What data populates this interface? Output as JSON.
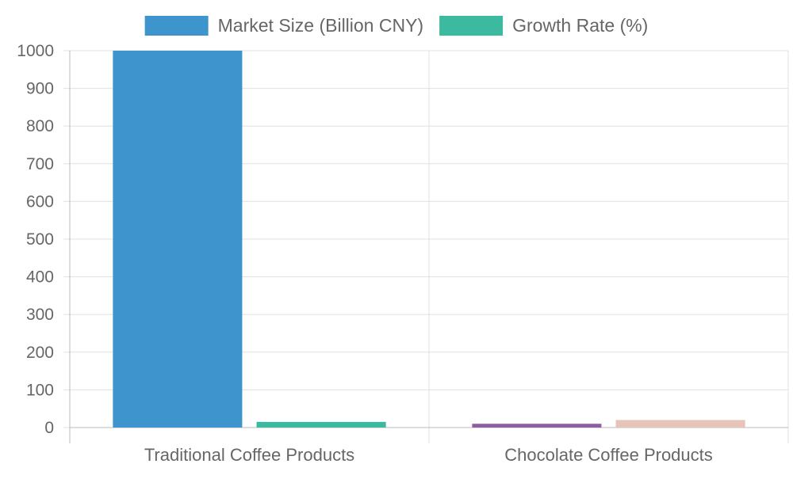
{
  "chart_data": {
    "type": "bar",
    "categories": [
      "Traditional Coffee Products",
      "Chocolate Coffee Products"
    ],
    "series": [
      {
        "name": "Market Size (Billion CNY)",
        "values": [
          1000,
          10
        ],
        "colors": [
          "#3e95cd",
          "#8e5ea2"
        ]
      },
      {
        "name": "Growth Rate (%)",
        "values": [
          15,
          20
        ],
        "colors": [
          "#3cba9f",
          "#e8c3b9"
        ]
      }
    ],
    "ylim": [
      0,
      1000
    ],
    "yticks": [
      0,
      100,
      200,
      300,
      400,
      500,
      600,
      700,
      800,
      900,
      1000
    ],
    "grid": true,
    "legend_position": "top"
  }
}
